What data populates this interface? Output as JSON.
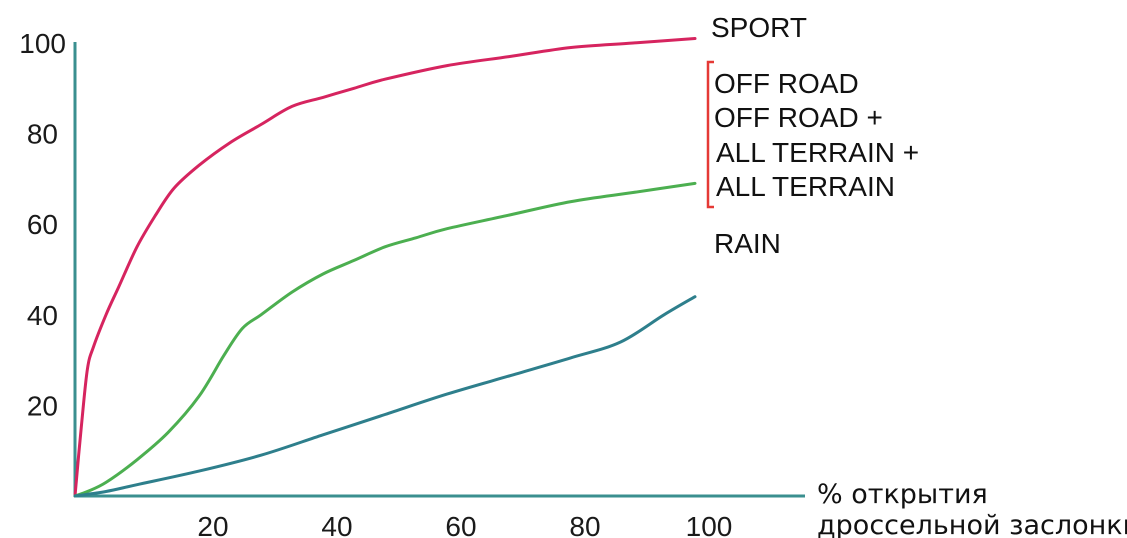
{
  "chart_data": {
    "type": "line",
    "title": "",
    "xlabel": [
      "% открытия",
      "дроссельной заслонки"
    ],
    "ylabel": "",
    "xlim": [
      0,
      120
    ],
    "ylim": [
      0,
      100
    ],
    "x_ticks": [
      20,
      40,
      60,
      80,
      100
    ],
    "y_ticks": [
      20,
      40,
      60,
      80,
      100
    ],
    "grid": false,
    "colors": {
      "axis": "#3a8f8f",
      "sport": "#d6245f",
      "offroad": "#4caf50",
      "rain": "#2e7f8c",
      "bracket": "#e53935"
    },
    "series": [
      {
        "key": "sport",
        "x": [
          0,
          1,
          2,
          3,
          5,
          7,
          10,
          13,
          16,
          20,
          25,
          30,
          35,
          40,
          45,
          50,
          60,
          70,
          80,
          90,
          100
        ],
        "y": [
          0,
          15,
          28,
          33,
          40,
          46,
          55,
          62,
          68,
          73,
          78,
          82,
          86,
          88,
          90,
          92,
          95,
          97,
          99,
          100,
          101
        ]
      },
      {
        "key": "offroad",
        "x": [
          0,
          2,
          5,
          10,
          15,
          20,
          24,
          27,
          30,
          35,
          40,
          45,
          50,
          55,
          60,
          70,
          80,
          90,
          100
        ],
        "y": [
          0,
          1,
          3,
          8,
          14,
          22,
          31,
          37,
          40,
          45,
          49,
          52,
          55,
          57,
          59,
          62,
          65,
          67,
          69
        ]
      },
      {
        "key": "rain",
        "x": [
          0,
          5,
          10,
          20,
          30,
          40,
          50,
          60,
          70,
          80,
          88,
          95,
          100
        ],
        "y": [
          0,
          1,
          2.5,
          5.5,
          9,
          13.5,
          18,
          22.5,
          26.5,
          30.5,
          34,
          40,
          44
        ]
      }
    ],
    "labels": {
      "sport": "SPORT",
      "group": [
        "OFF ROAD",
        "OFF ROAD +",
        "ALL TERRAIN +",
        "ALL TERRAIN"
      ],
      "rain": "RAIN"
    }
  }
}
